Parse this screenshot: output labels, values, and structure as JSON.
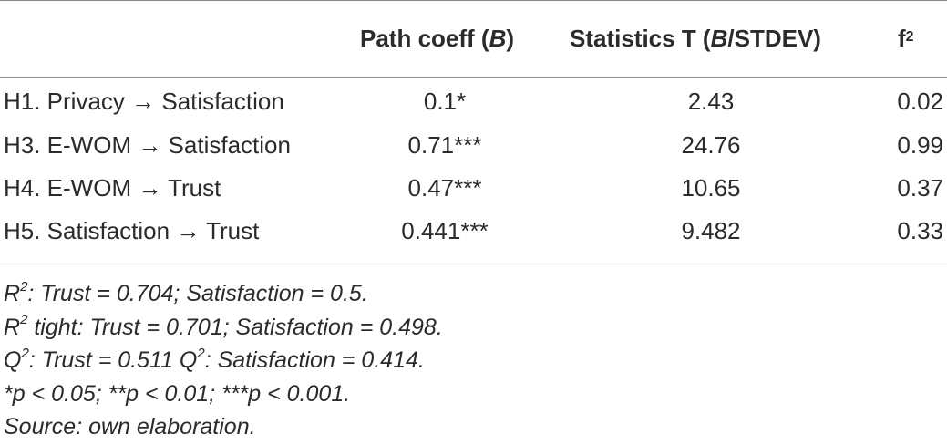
{
  "table": {
    "headers": {
      "path_prefix": "Path coeff (",
      "path_var": "B",
      "path_suffix": ")",
      "stat_prefix": "Statistics T (",
      "stat_var": "B",
      "stat_suffix": "/STDEV)",
      "f2_base": "f",
      "f2_sup": "2"
    },
    "rows": [
      {
        "hypothesis": "H1. Privacy → Satisfaction",
        "path": "0.1*",
        "stat": "2.43",
        "f2": "0.02"
      },
      {
        "hypothesis": "H3. E-WOM → Satisfaction",
        "path": "0.71***",
        "stat": "24.76",
        "f2": "0.99"
      },
      {
        "hypothesis": "H4. E-WOM → Trust",
        "path": "0.47***",
        "stat": "10.65",
        "f2": "0.37"
      },
      {
        "hypothesis": "H5. Satisfaction → Trust",
        "path": "0.441***",
        "stat": "9.482",
        "f2": "0.33"
      }
    ]
  },
  "notes": {
    "r2_base": "R",
    "r2_sup": "2",
    "r2_text": ": Trust = 0.704; Satisfaction = 0.5.",
    "r2tight_base": "R",
    "r2tight_sup": "2",
    "r2tight_text": " tight: Trust = 0.701; Satisfaction =  0.498.",
    "q2_base": "Q",
    "q2_sup": "2",
    "q2_text_a": ": Trust = 0.511 Q",
    "q2_sup_b": "2",
    "q2_text_b": ": Satisfaction = 0.414.",
    "significance": "*p < 0.05; **p < 0.01; ***p < 0.001.",
    "source": "Source: own elaboration."
  }
}
